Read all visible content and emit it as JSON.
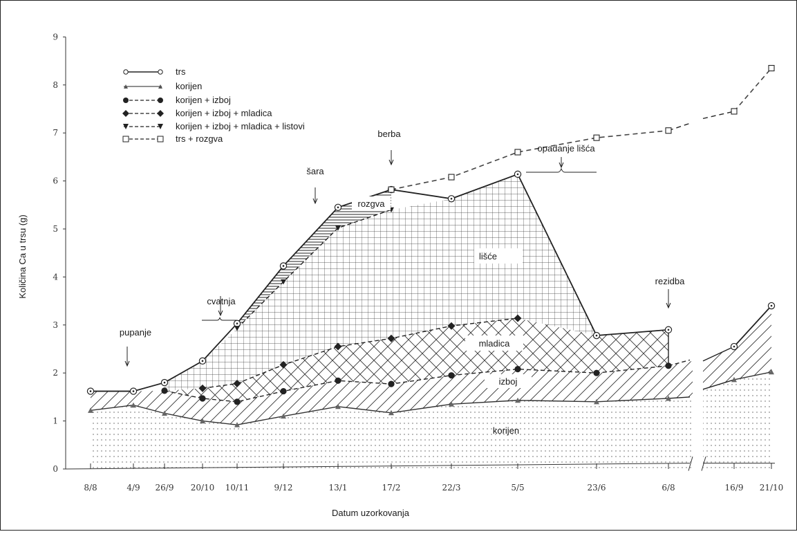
{
  "chart_data": {
    "type": "area",
    "xlabel": "Datum uzorkovanja",
    "ylabel": "Količina Ca u trsu (g)",
    "ylim": [
      0,
      9
    ],
    "yticks": [
      "0",
      "1",
      "2",
      "3",
      "4",
      "5",
      "6",
      "7",
      "8",
      "9"
    ],
    "categories": [
      "8/8",
      "4/9",
      "26/9",
      "20/10",
      "10/11",
      "9/12",
      "13/1",
      "17/2",
      "22/3",
      "5/5",
      "23/6",
      "6/8",
      "16/9",
      "21/10"
    ],
    "axis_break": "between 6/8 and 16/9",
    "grid": false,
    "legend_position": "top-left",
    "series": [
      {
        "name": "trs",
        "values": [
          1.62,
          1.62,
          1.8,
          2.25,
          3.03,
          4.23,
          5.45,
          5.82,
          5.63,
          6.14,
          2.78,
          2.9,
          2.55,
          3.4
        ]
      },
      {
        "name": "korijen",
        "values": [
          1.22,
          1.33,
          1.16,
          1.0,
          0.92,
          1.1,
          1.3,
          1.17,
          1.35,
          1.43,
          1.4,
          1.47,
          1.86,
          2.02
        ]
      },
      {
        "name": "korijen + izboj",
        "values": [
          null,
          null,
          1.63,
          1.47,
          1.4,
          1.62,
          1.84,
          1.77,
          1.95,
          2.08,
          2.0,
          2.15,
          null,
          null
        ]
      },
      {
        "name": "korijen + izboj + mladica",
        "values": [
          null,
          null,
          null,
          1.68,
          1.78,
          2.17,
          2.55,
          2.72,
          2.98,
          3.14,
          null,
          null,
          null,
          null
        ]
      },
      {
        "name": "korijen + izboj + mladica + listovi",
        "values": [
          null,
          null,
          null,
          null,
          2.93,
          3.9,
          5.02,
          5.4,
          null,
          null,
          null,
          null,
          null,
          null
        ]
      },
      {
        "name": "trs + rozgva",
        "values": [
          null,
          null,
          null,
          null,
          null,
          null,
          null,
          5.82,
          6.08,
          6.6,
          6.9,
          7.05,
          7.45,
          8.35
        ]
      }
    ],
    "regions": [
      "korijen",
      "izboj",
      "mladica",
      "lišće",
      "rozgva"
    ],
    "annotations": [
      {
        "text": "pupanje",
        "at": "4/9"
      },
      {
        "text": "cvatnja",
        "at": "10/11"
      },
      {
        "text": "šara",
        "at": "13/1"
      },
      {
        "text": "berba",
        "at": "17/2"
      },
      {
        "text": "opadanje lišća",
        "at": "5/5"
      },
      {
        "text": "rezidba",
        "at": "6/8"
      }
    ]
  }
}
